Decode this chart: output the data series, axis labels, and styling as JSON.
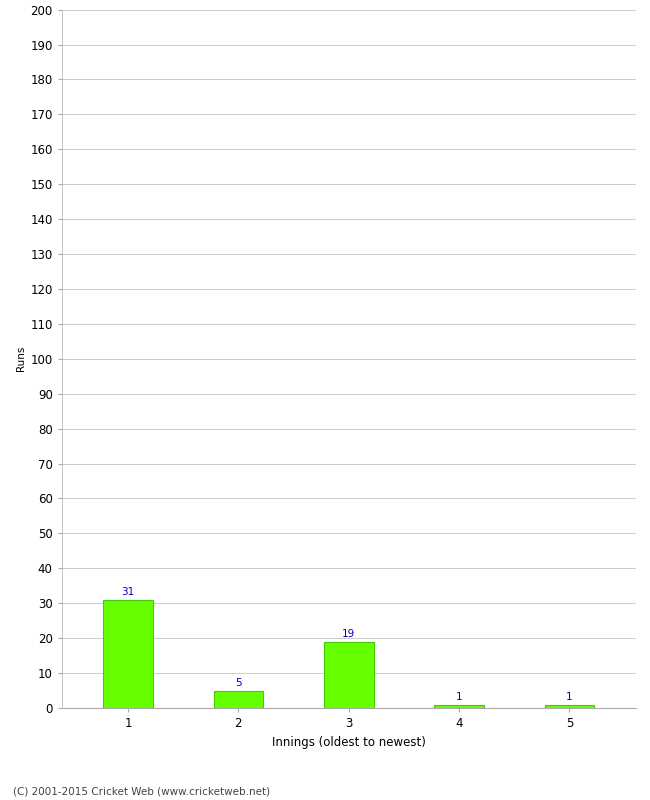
{
  "categories": [
    "1",
    "2",
    "3",
    "4",
    "5"
  ],
  "values": [
    31,
    5,
    19,
    1,
    1
  ],
  "bar_color": "#66ff00",
  "bar_edge_color": "#44cc00",
  "label_color": "#0000bb",
  "ylabel": "Runs",
  "xlabel": "Innings (oldest to newest)",
  "ylim": [
    0,
    200
  ],
  "yticks": [
    0,
    10,
    20,
    30,
    40,
    50,
    60,
    70,
    80,
    90,
    100,
    110,
    120,
    130,
    140,
    150,
    160,
    170,
    180,
    190,
    200
  ],
  "footer": "(C) 2001-2015 Cricket Web (www.cricketweb.net)",
  "background_color": "#ffffff",
  "grid_color": "#cccccc",
  "label_fontsize": 7.5,
  "axis_fontsize": 8.5,
  "ylabel_fontsize": 7.5,
  "footer_fontsize": 7.5
}
